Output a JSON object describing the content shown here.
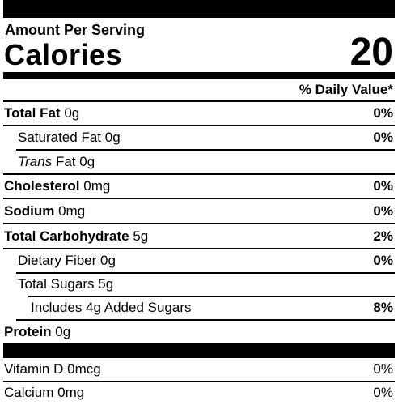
{
  "header": {
    "amount_per_serving": "Amount Per Serving",
    "calories_label": "Calories",
    "calories_value": "20",
    "daily_value_heading": "% Daily Value*"
  },
  "nutrients": [
    {
      "label": "Total Fat",
      "amount": "0g",
      "daily_value": "0%"
    },
    {
      "label": "Saturated Fat",
      "amount": "0g",
      "daily_value": "0%"
    },
    {
      "label_italic": "Trans",
      "label": "Fat",
      "amount": "0g"
    },
    {
      "label": "Cholesterol",
      "amount": "0mg",
      "daily_value": "0%"
    },
    {
      "label": "Sodium",
      "amount": "0mg",
      "daily_value": "0%"
    },
    {
      "label": "Total Carbohydrate",
      "amount": "5g",
      "daily_value": "2%"
    },
    {
      "label": "Dietary Fiber",
      "amount": "0g",
      "daily_value": "0%"
    },
    {
      "label": "Total Sugars",
      "amount": "5g"
    },
    {
      "label": "Includes 4g Added Sugars",
      "daily_value": "8%"
    },
    {
      "label": "Protein",
      "amount": "0g"
    }
  ],
  "vitamins": [
    {
      "label": "Vitamin D",
      "amount": "0mcg",
      "daily_value": "0%"
    },
    {
      "label": "Calcium",
      "amount": "0mg",
      "daily_value": "0%"
    }
  ]
}
